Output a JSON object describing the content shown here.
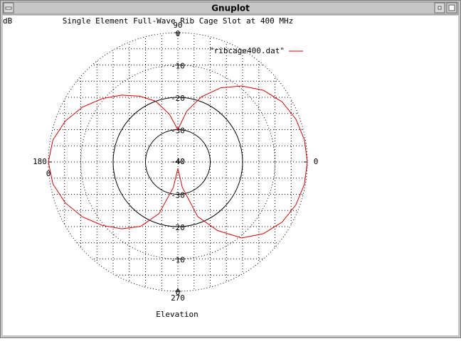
{
  "window_title": "Gnuplot",
  "chart_data": {
    "type": "polar",
    "title": "Single Element Full-Wave Rib Cage Slot at 400 MHz",
    "rlabel": "dB",
    "xlabel": "Elevation",
    "thetaticks": [
      0,
      90,
      180,
      270
    ],
    "rlim": [
      -40,
      0
    ],
    "rticks": [
      -40,
      -30,
      -20,
      -10,
      0
    ],
    "grid": true,
    "legend": "top-right",
    "series": [
      {
        "name": "\"ribcage400.dat\"",
        "color": "#e00000",
        "theta": [
          0,
          10,
          20,
          30,
          40,
          50,
          60,
          70,
          80,
          90,
          100,
          110,
          120,
          130,
          140,
          150,
          160,
          170,
          180,
          190,
          200,
          210,
          220,
          230,
          240,
          250,
          260,
          270,
          280,
          290,
          300,
          310,
          320,
          330,
          340,
          350,
          360
        ],
        "values": [
          0,
          -0.3,
          -1.2,
          -2.8,
          -5.5,
          -9.3,
          -13.5,
          -18.5,
          -24,
          -30,
          -25,
          -20,
          -16.5,
          -13,
          -9.5,
          -6,
          -3,
          -0.8,
          0,
          -0.8,
          -3,
          -6,
          -9.5,
          -13,
          -17,
          -23,
          -32,
          -38,
          -32,
          -22,
          -15.5,
          -9.3,
          -5.5,
          -2.8,
          -1.2,
          -0.3,
          0
        ]
      }
    ]
  }
}
